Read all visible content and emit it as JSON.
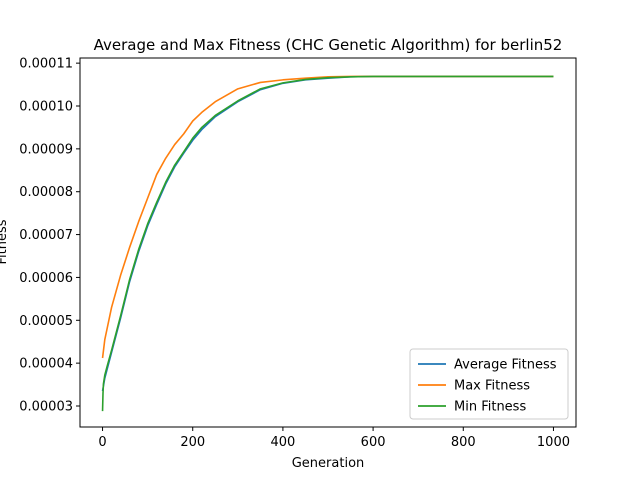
{
  "chart_data": {
    "type": "line",
    "title": "Average and Max Fitness (CHC Genetic Algorithm) for berlin52",
    "xlabel": "Generation",
    "ylabel": "Fitness",
    "xlim": [
      -50,
      1050
    ],
    "ylim": [
      2.51e-05,
      0.0001112
    ],
    "xticks": [
      0,
      200,
      400,
      600,
      800,
      1000
    ],
    "xtick_labels": [
      "0",
      "200",
      "400",
      "600",
      "800",
      "1000"
    ],
    "yticks": [
      3e-05,
      4e-05,
      5e-05,
      6e-05,
      7e-05,
      8e-05,
      9e-05,
      0.0001,
      0.00011
    ],
    "ytick_labels": [
      "0.00003",
      "0.00004",
      "0.00005",
      "0.00006",
      "0.00007",
      "0.00008",
      "0.00009",
      "0.00010",
      "0.00011"
    ],
    "grid": false,
    "legend_position": "lower-right",
    "series": [
      {
        "name": "Average Fitness",
        "color": "#1f77b4",
        "x": [
          0,
          5,
          10,
          20,
          40,
          60,
          80,
          100,
          120,
          140,
          160,
          180,
          200,
          220,
          250,
          300,
          350,
          400,
          450,
          500,
          550,
          600,
          700,
          800,
          900,
          1000
        ],
        "y": [
          3.35e-05,
          3.65e-05,
          3.85e-05,
          4.25e-05,
          5.05e-05,
          5.9e-05,
          6.6e-05,
          7.2e-05,
          7.7e-05,
          8.18e-05,
          8.58e-05,
          8.9e-05,
          9.2e-05,
          9.45e-05,
          9.75e-05,
          0.000101,
          0.0001038,
          0.0001053,
          0.0001061,
          0.0001065,
          0.0001068,
          0.0001069,
          0.0001069,
          0.0001069,
          0.0001069,
          0.0001069
        ]
      },
      {
        "name": "Max Fitness",
        "color": "#ff7f0e",
        "x": [
          0,
          5,
          10,
          20,
          40,
          60,
          80,
          100,
          120,
          140,
          160,
          180,
          200,
          220,
          250,
          300,
          350,
          400,
          450,
          500,
          550,
          600,
          700,
          800,
          900,
          1000
        ],
        "y": [
          4.12e-05,
          4.55e-05,
          4.8e-05,
          5.3e-05,
          6.05e-05,
          6.7e-05,
          7.3e-05,
          7.85e-05,
          8.4e-05,
          8.78e-05,
          9.1e-05,
          9.35e-05,
          9.65e-05,
          9.85e-05,
          0.000101,
          0.000104,
          0.0001055,
          0.0001061,
          0.0001065,
          0.0001068,
          0.0001069,
          0.0001069,
          0.0001069,
          0.0001069,
          0.0001069,
          0.0001069
        ]
      },
      {
        "name": "Min Fitness",
        "color": "#2ca02c",
        "x": [
          0,
          1,
          2,
          5,
          10,
          20,
          40,
          60,
          80,
          100,
          120,
          140,
          160,
          180,
          200,
          220,
          250,
          300,
          350,
          400,
          450,
          500,
          550,
          600,
          700,
          800,
          900,
          1000
        ],
        "y": [
          2.88e-05,
          3.3e-05,
          3.52e-05,
          3.72e-05,
          3.92e-05,
          4.3e-05,
          5.1e-05,
          5.95e-05,
          6.65e-05,
          7.25e-05,
          7.75e-05,
          8.22e-05,
          8.62e-05,
          8.93e-05,
          9.25e-05,
          9.5e-05,
          9.78e-05,
          0.0001012,
          0.000104,
          0.0001054,
          0.0001062,
          0.0001066,
          0.0001068,
          0.0001069,
          0.0001069,
          0.0001069,
          0.0001069,
          0.0001069
        ]
      }
    ]
  }
}
